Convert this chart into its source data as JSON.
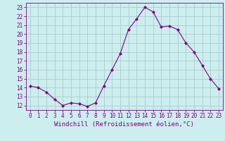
{
  "x": [
    0,
    1,
    2,
    3,
    4,
    5,
    6,
    7,
    8,
    9,
    10,
    11,
    12,
    13,
    14,
    15,
    16,
    17,
    18,
    19,
    20,
    21,
    22,
    23
  ],
  "y": [
    14.2,
    14.0,
    13.5,
    12.7,
    12.0,
    12.3,
    12.2,
    11.9,
    12.3,
    14.2,
    16.0,
    17.8,
    20.5,
    21.7,
    23.0,
    22.5,
    20.8,
    20.9,
    20.5,
    19.0,
    18.0,
    16.5,
    15.0,
    13.9
  ],
  "line_color": "#800080",
  "marker": "D",
  "marker_size": 2.0,
  "bg_color": "#cceeee",
  "grid_color": "#aacccc",
  "xlabel": "Windchill (Refroidissement éolien,°C)",
  "xlabel_color": "#800080",
  "tick_color": "#800080",
  "ylim": [
    11.5,
    23.5
  ],
  "xlim": [
    -0.5,
    23.5
  ],
  "yticks": [
    12,
    13,
    14,
    15,
    16,
    17,
    18,
    19,
    20,
    21,
    22,
    23
  ],
  "xticks": [
    0,
    1,
    2,
    3,
    4,
    5,
    6,
    7,
    8,
    9,
    10,
    11,
    12,
    13,
    14,
    15,
    16,
    17,
    18,
    19,
    20,
    21,
    22,
    23
  ]
}
